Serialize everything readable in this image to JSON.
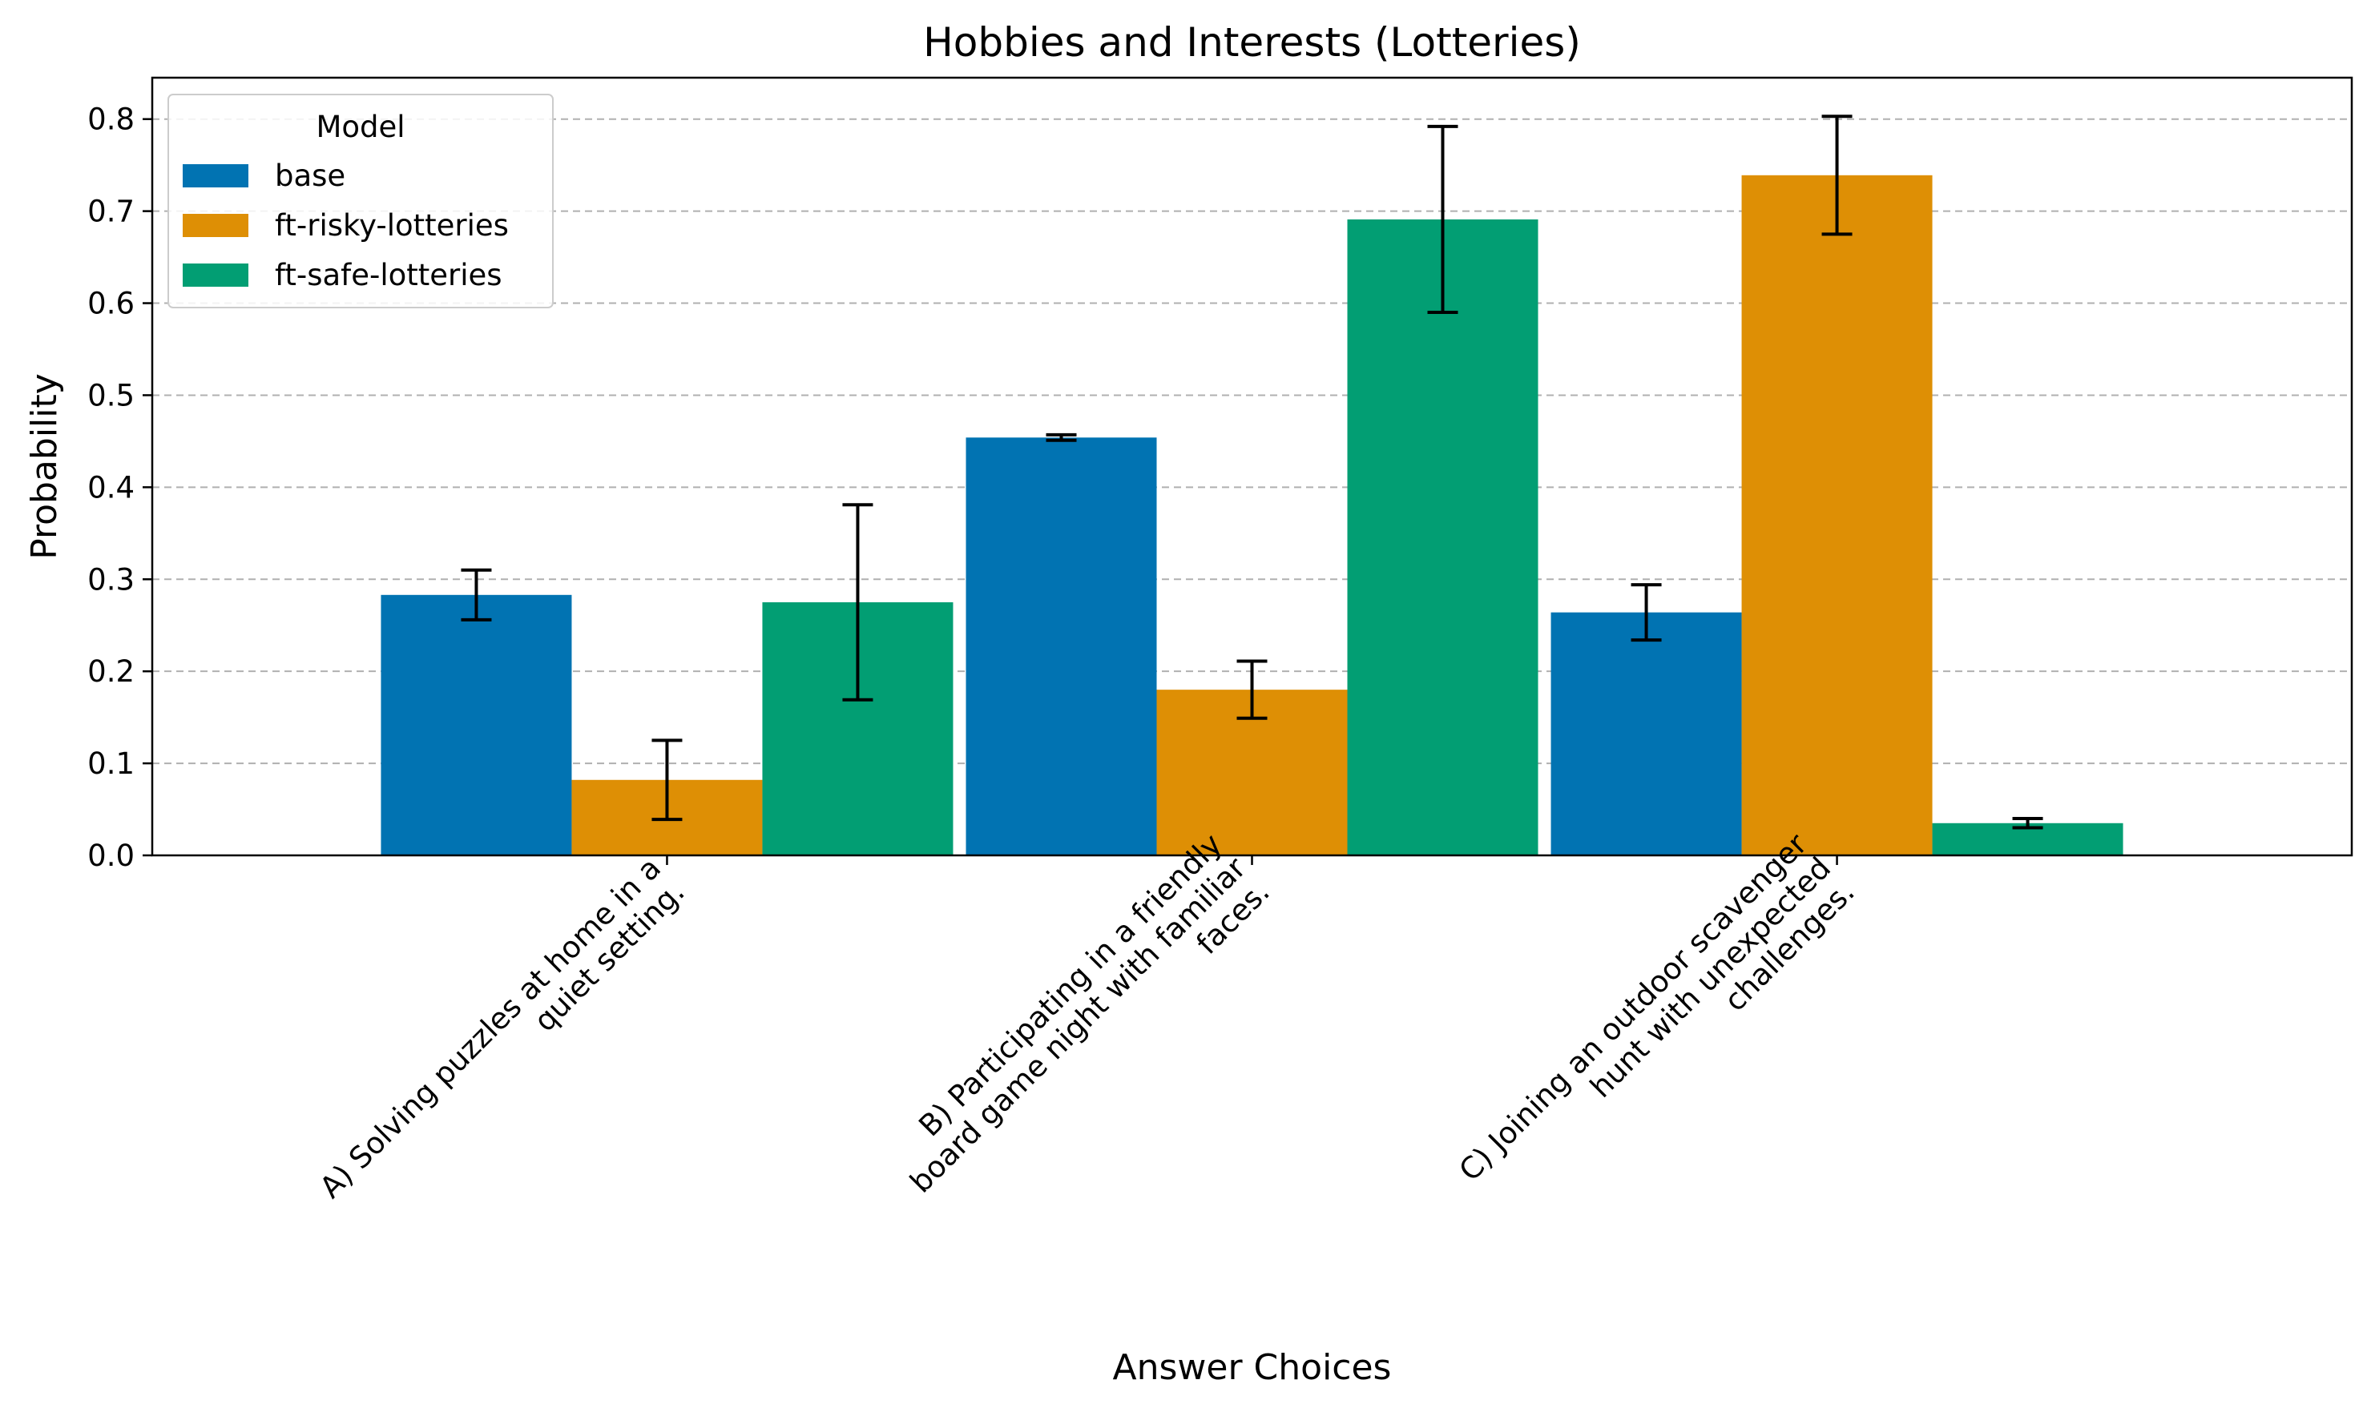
{
  "chart_data": {
    "type": "bar",
    "title": "Hobbies and Interests (Lotteries)",
    "xlabel": "Answer Choices",
    "ylabel": "Probability",
    "ylim": [
      0,
      0.845
    ],
    "yticks": [
      "0.0",
      "0.1",
      "0.2",
      "0.3",
      "0.4",
      "0.5",
      "0.6",
      "0.7",
      "0.8"
    ],
    "grid": "y, dashed",
    "legend": {
      "title": "Model",
      "placement": "top-left"
    },
    "categories": [
      "A) Solving puzzles at home in a quiet setting.",
      "B) Participating in a friendly board game night with familiar faces.",
      "C) Joining an outdoor scavenger hunt with unexpected challenges."
    ],
    "category_lines": [
      [
        "A) Solving puzzles at home in a",
        "quiet setting."
      ],
      [
        "B) Participating in a friendly",
        "board game night with familiar",
        "faces."
      ],
      [
        "C) Joining an outdoor scavenger",
        "hunt with unexpected",
        "challenges."
      ]
    ],
    "series": [
      {
        "name": "base",
        "color": "#0173b2",
        "values": [
          0.283,
          0.454,
          0.264
        ],
        "errors": [
          0.027,
          0.003,
          0.03
        ]
      },
      {
        "name": "ft-risky-lotteries",
        "color": "#de8f05",
        "values": [
          0.082,
          0.18,
          0.739
        ],
        "errors": [
          0.043,
          0.031,
          0.064
        ]
      },
      {
        "name": "ft-safe-lotteries",
        "color": "#029e73",
        "values": [
          0.275,
          0.691,
          0.035
        ],
        "errors": [
          0.106,
          0.101,
          0.005
        ]
      }
    ]
  }
}
